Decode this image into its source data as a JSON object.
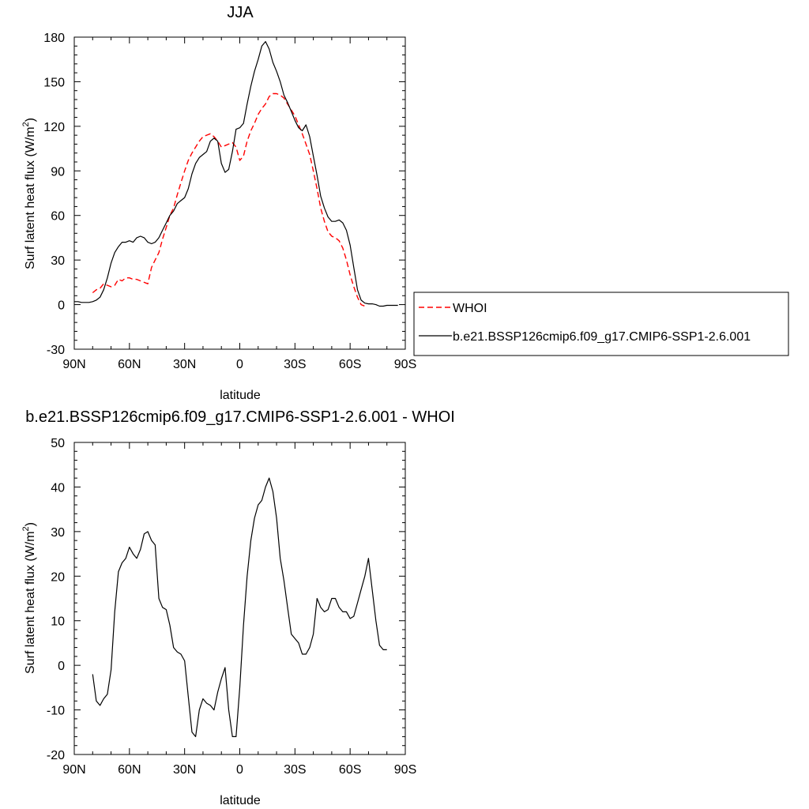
{
  "chart_data": [
    {
      "type": "line",
      "title": "JJA",
      "xlabel": "latitude",
      "ylabel": "Surf latent heat flux (W/m",
      "ylabel_sup": "2",
      "ylabel_close": ")",
      "xlim": [
        90,
        -90
      ],
      "ylim": [
        -30,
        180
      ],
      "x_ticks": [
        90,
        60,
        30,
        0,
        -30,
        -60,
        -90
      ],
      "x_tick_labels": [
        "90N",
        "60N",
        "30N",
        "0",
        "30S",
        "60S",
        "90S"
      ],
      "y_ticks": [
        -30,
        0,
        30,
        60,
        90,
        120,
        150,
        180
      ],
      "y_tick_labels": [
        "-30",
        "0",
        "30",
        "60",
        "90",
        "120",
        "150",
        "180"
      ],
      "grid": false,
      "legend": "right",
      "series": [
        {
          "name": "WHOI",
          "color": "#ff0000",
          "dash": "dashed",
          "points": [
            [
              80,
              8
            ],
            [
              78,
              10
            ],
            [
              76,
              11
            ],
            [
              74,
              14
            ],
            [
              72,
              13
            ],
            [
              70,
              12
            ],
            [
              68,
              13
            ],
            [
              66,
              17
            ],
            [
              64,
              16
            ],
            [
              62,
              18
            ],
            [
              60,
              18
            ],
            [
              58,
              17
            ],
            [
              56,
              17
            ],
            [
              54,
              16
            ],
            [
              52,
              15
            ],
            [
              50,
              14
            ],
            [
              48,
              25
            ],
            [
              46,
              30
            ],
            [
              44,
              35
            ],
            [
              42,
              44
            ],
            [
              40,
              52
            ],
            [
              38,
              60
            ],
            [
              36,
              65
            ],
            [
              34,
              74
            ],
            [
              32,
              82
            ],
            [
              30,
              90
            ],
            [
              28,
              97
            ],
            [
              26,
              102
            ],
            [
              24,
              106
            ],
            [
              22,
              110
            ],
            [
              20,
              113
            ],
            [
              18,
              114
            ],
            [
              16,
              115
            ],
            [
              14,
              113
            ],
            [
              12,
              110
            ],
            [
              10,
              106
            ],
            [
              8,
              107
            ],
            [
              6,
              108
            ],
            [
              4,
              109
            ],
            [
              2,
              106
            ],
            [
              0,
              97
            ],
            [
              -2,
              100
            ],
            [
              -4,
              110
            ],
            [
              -6,
              117
            ],
            [
              -8,
              122
            ],
            [
              -10,
              128
            ],
            [
              -12,
              132
            ],
            [
              -14,
              135
            ],
            [
              -16,
              140
            ],
            [
              -18,
              142
            ],
            [
              -20,
              142
            ],
            [
              -22,
              141
            ],
            [
              -24,
              139
            ],
            [
              -26,
              135
            ],
            [
              -28,
              131
            ],
            [
              -30,
              127
            ],
            [
              -32,
              121
            ],
            [
              -34,
              115
            ],
            [
              -36,
              108
            ],
            [
              -38,
              101
            ],
            [
              -40,
              90
            ],
            [
              -42,
              78
            ],
            [
              -44,
              65
            ],
            [
              -46,
              56
            ],
            [
              -48,
              49
            ],
            [
              -50,
              46
            ],
            [
              -52,
              45
            ],
            [
              -54,
              43
            ],
            [
              -56,
              38
            ],
            [
              -58,
              30
            ],
            [
              -60,
              20
            ],
            [
              -62,
              12
            ],
            [
              -64,
              5
            ],
            [
              -66,
              0
            ],
            [
              -68,
              -1
            ]
          ]
        },
        {
          "name": "b.e21.BSSP126cmip6.f09_g17.CMIP6-SSP1-2.6.001",
          "color": "#000000",
          "dash": "solid",
          "points": [
            [
              90,
              2
            ],
            [
              88,
              2
            ],
            [
              86,
              1.5
            ],
            [
              84,
              1.5
            ],
            [
              82,
              1.5
            ],
            [
              80,
              2
            ],
            [
              78,
              3
            ],
            [
              76,
              5
            ],
            [
              74,
              10
            ],
            [
              72,
              18
            ],
            [
              70,
              28
            ],
            [
              68,
              35
            ],
            [
              66,
              39
            ],
            [
              64,
              42
            ],
            [
              62,
              42
            ],
            [
              60,
              43
            ],
            [
              58,
              42
            ],
            [
              56,
              45
            ],
            [
              54,
              46
            ],
            [
              52,
              45
            ],
            [
              50,
              42
            ],
            [
              48,
              41
            ],
            [
              46,
              42
            ],
            [
              44,
              45
            ],
            [
              42,
              50
            ],
            [
              40,
              55
            ],
            [
              38,
              60
            ],
            [
              36,
              63
            ],
            [
              34,
              68
            ],
            [
              32,
              70
            ],
            [
              30,
              72
            ],
            [
              28,
              78
            ],
            [
              26,
              88
            ],
            [
              24,
              95
            ],
            [
              22,
              99
            ],
            [
              20,
              101
            ],
            [
              18,
              103
            ],
            [
              16,
              110
            ],
            [
              14,
              112
            ],
            [
              12,
              110
            ],
            [
              10,
              95
            ],
            [
              8,
              89
            ],
            [
              6,
              91
            ],
            [
              4,
              103
            ],
            [
              2,
              118
            ],
            [
              0,
              119
            ],
            [
              -2,
              122
            ],
            [
              -4,
              135
            ],
            [
              -6,
              147
            ],
            [
              -8,
              157
            ],
            [
              -10,
              165
            ],
            [
              -12,
              174
            ],
            [
              -14,
              177
            ],
            [
              -16,
              172
            ],
            [
              -18,
              163
            ],
            [
              -20,
              157
            ],
            [
              -22,
              150
            ],
            [
              -24,
              141
            ],
            [
              -26,
              136
            ],
            [
              -28,
              130
            ],
            [
              -30,
              124
            ],
            [
              -32,
              119
            ],
            [
              -34,
              117
            ],
            [
              -36,
              121
            ],
            [
              -38,
              113
            ],
            [
              -40,
              100
            ],
            [
              -42,
              87
            ],
            [
              -44,
              73
            ],
            [
              -46,
              65
            ],
            [
              -48,
              59
            ],
            [
              -50,
              56
            ],
            [
              -52,
              56
            ],
            [
              -54,
              57
            ],
            [
              -56,
              55
            ],
            [
              -58,
              50
            ],
            [
              -60,
              40
            ],
            [
              -62,
              25
            ],
            [
              -64,
              10
            ],
            [
              -66,
              3
            ],
            [
              -68,
              1
            ],
            [
              -70,
              0.5
            ],
            [
              -72,
              0.5
            ],
            [
              -74,
              0
            ],
            [
              -76,
              -1
            ],
            [
              -78,
              -1
            ],
            [
              -80,
              -0.5
            ],
            [
              -82,
              -0.5
            ],
            [
              -84,
              -0.5
            ],
            [
              -86,
              -0.5
            ]
          ]
        }
      ]
    },
    {
      "type": "line",
      "title": "b.e21.BSSP126cmip6.f09_g17.CMIP6-SSP1-2.6.001 - WHOI",
      "xlabel": "latitude",
      "ylabel": "Surf latent heat flux (W/m",
      "ylabel_sup": "2",
      "ylabel_close": ")",
      "xlim": [
        90,
        -90
      ],
      "ylim": [
        -20,
        50
      ],
      "x_ticks": [
        90,
        60,
        30,
        0,
        -30,
        -60,
        -90
      ],
      "x_tick_labels": [
        "90N",
        "60N",
        "30N",
        "0",
        "30S",
        "60S",
        "90S"
      ],
      "y_ticks": [
        -20,
        -10,
        0,
        10,
        20,
        30,
        40,
        50
      ],
      "y_tick_labels": [
        "-20",
        "-10",
        "0",
        "10",
        "20",
        "30",
        "40",
        "50"
      ],
      "grid": false,
      "series": [
        {
          "color": "#000000",
          "dash": "solid",
          "points": [
            [
              80,
              -2
            ],
            [
              78,
              -8
            ],
            [
              76,
              -9
            ],
            [
              74,
              -7.5
            ],
            [
              72,
              -6.5
            ],
            [
              70,
              -1
            ],
            [
              68,
              12
            ],
            [
              66,
              21
            ],
            [
              64,
              23
            ],
            [
              62,
              24
            ],
            [
              60,
              26.5
            ],
            [
              58,
              25
            ],
            [
              56,
              24
            ],
            [
              54,
              26
            ],
            [
              52,
              29.5
            ],
            [
              50,
              30
            ],
            [
              48,
              28
            ],
            [
              46,
              27
            ],
            [
              44,
              15
            ],
            [
              42,
              13
            ],
            [
              40,
              12.5
            ],
            [
              38,
              9
            ],
            [
              36,
              4
            ],
            [
              34,
              3
            ],
            [
              32,
              2.5
            ],
            [
              30,
              1
            ],
            [
              28,
              -7
            ],
            [
              26,
              -15
            ],
            [
              24,
              -16
            ],
            [
              22,
              -10
            ],
            [
              20,
              -7.5
            ],
            [
              18,
              -8.5
            ],
            [
              16,
              -9
            ],
            [
              14,
              -10
            ],
            [
              12,
              -6
            ],
            [
              10,
              -3
            ],
            [
              8,
              -0.5
            ],
            [
              6,
              -10
            ],
            [
              4,
              -16
            ],
            [
              2,
              -16
            ],
            [
              0,
              -5
            ],
            [
              -2,
              9
            ],
            [
              -4,
              20
            ],
            [
              -6,
              28
            ],
            [
              -8,
              33
            ],
            [
              -10,
              36
            ],
            [
              -12,
              37
            ],
            [
              -14,
              40
            ],
            [
              -16,
              42
            ],
            [
              -18,
              39
            ],
            [
              -20,
              33
            ],
            [
              -22,
              24
            ],
            [
              -24,
              19
            ],
            [
              -26,
              13
            ],
            [
              -28,
              7
            ],
            [
              -30,
              6
            ],
            [
              -32,
              5
            ],
            [
              -34,
              2.5
            ],
            [
              -36,
              2.5
            ],
            [
              -38,
              4
            ],
            [
              -40,
              7
            ],
            [
              -42,
              15
            ],
            [
              -44,
              13
            ],
            [
              -46,
              12
            ],
            [
              -48,
              12.5
            ],
            [
              -50,
              15
            ],
            [
              -52,
              15
            ],
            [
              -54,
              13
            ],
            [
              -56,
              12
            ],
            [
              -58,
              12
            ],
            [
              -60,
              10.5
            ],
            [
              -62,
              11
            ],
            [
              -64,
              14
            ],
            [
              -66,
              17
            ],
            [
              -68,
              20
            ],
            [
              -70,
              24
            ],
            [
              -72,
              17
            ],
            [
              -74,
              10
            ],
            [
              -76,
              4.5
            ],
            [
              -78,
              3.5
            ],
            [
              -80,
              3.5
            ]
          ]
        }
      ]
    }
  ]
}
